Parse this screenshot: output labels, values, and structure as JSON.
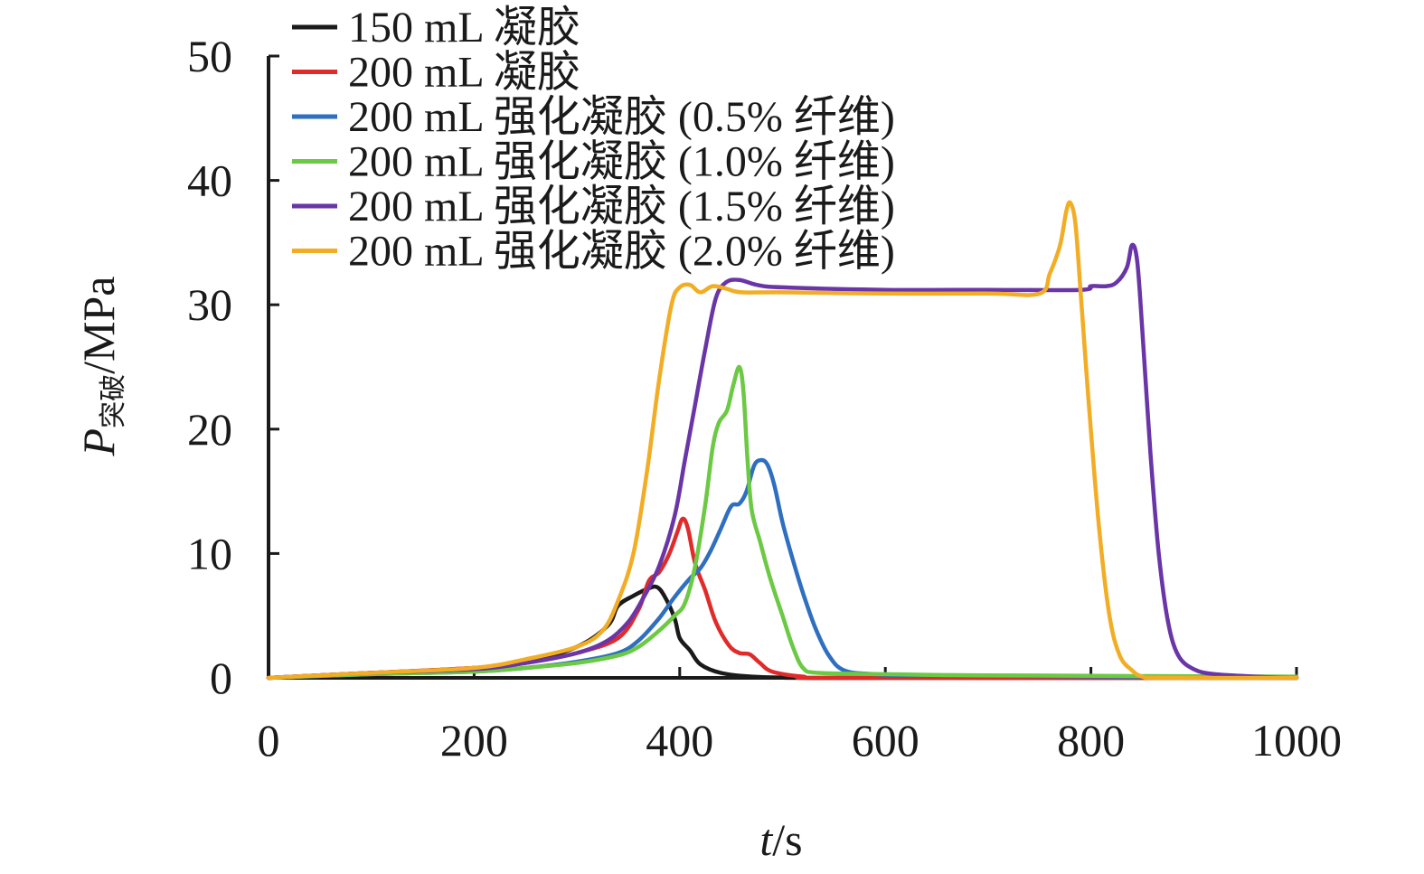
{
  "chart_data": {
    "type": "line",
    "xlabel_italic": "t",
    "xlabel_rest": "/s",
    "ylabel_italic": "P",
    "ylabel_sub": "突破",
    "ylabel_rest": "/MPa",
    "xlim": [
      0,
      1000
    ],
    "ylim": [
      0,
      50
    ],
    "x_ticks": [
      "0",
      "200",
      "400",
      "600",
      "800",
      "1000"
    ],
    "y_ticks": [
      "0",
      "10",
      "20",
      "30",
      "40",
      "50"
    ],
    "grid": false,
    "legend_position": "top-left",
    "series": [
      {
        "name": "150 mL 凝胶",
        "color": "#1a1a1a",
        "points": [
          [
            0,
            0
          ],
          [
            100,
            0.4
          ],
          [
            200,
            0.8
          ],
          [
            250,
            1.3
          ],
          [
            300,
            2.5
          ],
          [
            330,
            4.2
          ],
          [
            340,
            5.8
          ],
          [
            355,
            6.6
          ],
          [
            370,
            7.2
          ],
          [
            378,
            7.3
          ],
          [
            385,
            6.6
          ],
          [
            395,
            4.8
          ],
          [
            400,
            3.2
          ],
          [
            410,
            2.2
          ],
          [
            420,
            1.1
          ],
          [
            440,
            0.4
          ],
          [
            470,
            0.1
          ],
          [
            520,
            0
          ],
          [
            600,
            0
          ],
          [
            1000,
            0
          ]
        ]
      },
      {
        "name": "200 mL 凝胶",
        "color": "#e02b2b",
        "points": [
          [
            0,
            0
          ],
          [
            100,
            0.4
          ],
          [
            200,
            0.8
          ],
          [
            250,
            1.2
          ],
          [
            300,
            2.0
          ],
          [
            340,
            3.2
          ],
          [
            360,
            5.5
          ],
          [
            370,
            7.8
          ],
          [
            380,
            8.5
          ],
          [
            390,
            10.0
          ],
          [
            398,
            11.8
          ],
          [
            403,
            12.8
          ],
          [
            408,
            12.0
          ],
          [
            415,
            9.2
          ],
          [
            425,
            7.0
          ],
          [
            435,
            4.5
          ],
          [
            448,
            2.6
          ],
          [
            458,
            2.0
          ],
          [
            468,
            1.9
          ],
          [
            478,
            1.2
          ],
          [
            490,
            0.5
          ],
          [
            520,
            0.1
          ],
          [
            560,
            0
          ],
          [
            1000,
            0
          ]
        ]
      },
      {
        "name": "200 mL 强化凝胶 (0.5% 纤维)",
        "color": "#2f6fbf",
        "points": [
          [
            0,
            0
          ],
          [
            100,
            0.3
          ],
          [
            200,
            0.5
          ],
          [
            250,
            0.8
          ],
          [
            300,
            1.3
          ],
          [
            340,
            2.0
          ],
          [
            360,
            3.0
          ],
          [
            380,
            4.8
          ],
          [
            395,
            6.5
          ],
          [
            410,
            8.0
          ],
          [
            420,
            8.8
          ],
          [
            430,
            10.2
          ],
          [
            440,
            12.0
          ],
          [
            450,
            13.8
          ],
          [
            458,
            14.0
          ],
          [
            465,
            15.0
          ],
          [
            472,
            17.0
          ],
          [
            478,
            17.5
          ],
          [
            485,
            17.2
          ],
          [
            492,
            15.5
          ],
          [
            500,
            12.5
          ],
          [
            510,
            9.5
          ],
          [
            520,
            6.8
          ],
          [
            532,
            4.0
          ],
          [
            545,
            1.8
          ],
          [
            560,
            0.6
          ],
          [
            590,
            0.3
          ],
          [
            650,
            0.2
          ],
          [
            1000,
            0
          ]
        ]
      },
      {
        "name": "200 mL 强化凝胶 (1.0% 纤维)",
        "color": "#6cc944",
        "points": [
          [
            0,
            0
          ],
          [
            100,
            0.3
          ],
          [
            200,
            0.5
          ],
          [
            250,
            0.8
          ],
          [
            300,
            1.2
          ],
          [
            340,
            1.8
          ],
          [
            360,
            2.5
          ],
          [
            380,
            3.8
          ],
          [
            395,
            5.0
          ],
          [
            405,
            6.0
          ],
          [
            415,
            9.0
          ],
          [
            425,
            14.0
          ],
          [
            432,
            18.5
          ],
          [
            438,
            20.5
          ],
          [
            446,
            21.5
          ],
          [
            452,
            23.5
          ],
          [
            458,
            25.0
          ],
          [
            462,
            23.0
          ],
          [
            466,
            17.5
          ],
          [
            470,
            13.5
          ],
          [
            478,
            11.0
          ],
          [
            488,
            8.0
          ],
          [
            500,
            5.0
          ],
          [
            510,
            2.5
          ],
          [
            520,
            0.8
          ],
          [
            535,
            0.4
          ],
          [
            600,
            0.3
          ],
          [
            700,
            0.2
          ],
          [
            1000,
            0.1
          ]
        ]
      },
      {
        "name": "200 mL 强化凝胶 (1.5% 纤维)",
        "color": "#6a35a6",
        "points": [
          [
            0,
            0
          ],
          [
            100,
            0.4
          ],
          [
            200,
            0.7
          ],
          [
            250,
            1.2
          ],
          [
            300,
            2.0
          ],
          [
            330,
            3.0
          ],
          [
            350,
            4.5
          ],
          [
            365,
            6.5
          ],
          [
            380,
            9.0
          ],
          [
            395,
            13.0
          ],
          [
            405,
            17.5
          ],
          [
            415,
            22.0
          ],
          [
            425,
            26.5
          ],
          [
            435,
            30.5
          ],
          [
            445,
            31.8
          ],
          [
            458,
            32.0
          ],
          [
            475,
            31.6
          ],
          [
            500,
            31.4
          ],
          [
            600,
            31.2
          ],
          [
            700,
            31.2
          ],
          [
            790,
            31.2
          ],
          [
            800,
            31.5
          ],
          [
            815,
            31.5
          ],
          [
            825,
            31.8
          ],
          [
            835,
            33.0
          ],
          [
            840,
            34.8
          ],
          [
            845,
            33.5
          ],
          [
            850,
            28.0
          ],
          [
            858,
            18.0
          ],
          [
            866,
            10.0
          ],
          [
            875,
            4.5
          ],
          [
            885,
            1.8
          ],
          [
            900,
            0.7
          ],
          [
            920,
            0.3
          ],
          [
            960,
            0.1
          ],
          [
            1000,
            0
          ]
        ]
      },
      {
        "name": "200 mL 强化凝胶 (2.0% 纤维)",
        "color": "#f2ad25",
        "points": [
          [
            0,
            0
          ],
          [
            100,
            0.4
          ],
          [
            200,
            0.8
          ],
          [
            250,
            1.5
          ],
          [
            300,
            2.5
          ],
          [
            325,
            3.8
          ],
          [
            340,
            6.2
          ],
          [
            355,
            10.0
          ],
          [
            368,
            16.5
          ],
          [
            380,
            24.0
          ],
          [
            392,
            30.0
          ],
          [
            400,
            31.4
          ],
          [
            410,
            31.6
          ],
          [
            420,
            31.0
          ],
          [
            432,
            31.5
          ],
          [
            445,
            31.3
          ],
          [
            460,
            31.0
          ],
          [
            500,
            31.0
          ],
          [
            600,
            30.9
          ],
          [
            700,
            30.9
          ],
          [
            750,
            30.9
          ],
          [
            760,
            32.5
          ],
          [
            770,
            34.8
          ],
          [
            776,
            37.5
          ],
          [
            780,
            38.2
          ],
          [
            785,
            36.5
          ],
          [
            790,
            31.0
          ],
          [
            798,
            22.0
          ],
          [
            808,
            12.0
          ],
          [
            818,
            5.0
          ],
          [
            828,
            1.8
          ],
          [
            840,
            0.6
          ],
          [
            850,
            0.1
          ],
          [
            870,
            0
          ],
          [
            1000,
            0
          ]
        ]
      }
    ]
  }
}
